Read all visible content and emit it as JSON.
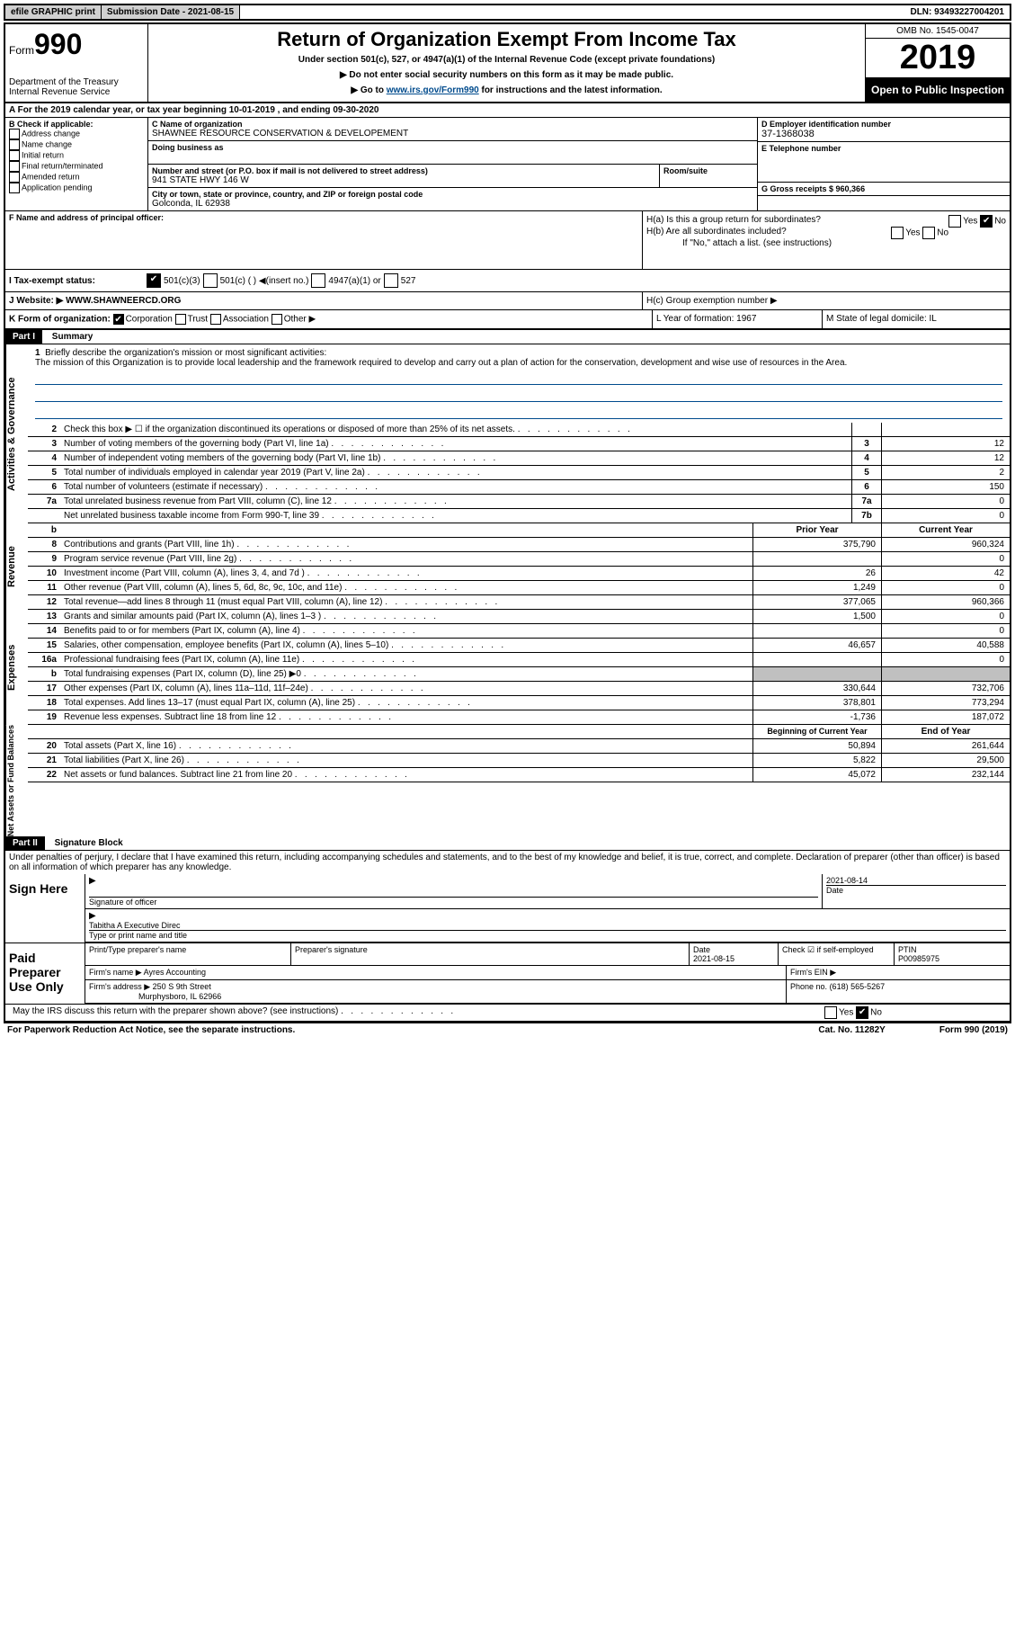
{
  "topbar": {
    "efile": "efile GRAPHIC print",
    "sub_label": "Submission Date - 2021-08-15",
    "dln": "DLN: 93493227004201"
  },
  "header": {
    "form_word": "Form",
    "form_num": "990",
    "dept": "Department of the Treasury\nInternal Revenue Service",
    "title": "Return of Organization Exempt From Income Tax",
    "sub": "Under section 501(c), 527, or 4947(a)(1) of the Internal Revenue Code (except private foundations)",
    "inst1": "▶ Do not enter social security numbers on this form as it may be made public.",
    "inst2_pre": "▶ Go to ",
    "inst2_link": "www.irs.gov/Form990",
    "inst2_post": " for instructions and the latest information.",
    "omb": "OMB No. 1545-0047",
    "year": "2019",
    "open": "Open to Public Inspection"
  },
  "row_a": "A For the 2019 calendar year, or tax year beginning 10-01-2019    , and ending 09-30-2020",
  "b": {
    "label": "B Check if applicable:",
    "addr": "Address change",
    "name": "Name change",
    "init": "Initial return",
    "final": "Final return/terminated",
    "amend": "Amended return",
    "app": "Application pending"
  },
  "c": {
    "name_lbl": "C Name of organization",
    "name": "SHAWNEE RESOURCE CONSERVATION & DEVELOPEMENT",
    "dba_lbl": "Doing business as",
    "addr_lbl": "Number and street (or P.O. box if mail is not delivered to street address)",
    "addr": "941 STATE HWY 146 W",
    "room_lbl": "Room/suite",
    "city_lbl": "City or town, state or province, country, and ZIP or foreign postal code",
    "city": "Golconda, IL  62938",
    "f_lbl": "F  Name and address of principal officer:"
  },
  "d": {
    "ein_lbl": "D Employer identification number",
    "ein": "37-1368038",
    "phone_lbl": "E Telephone number",
    "gross_lbl": "G Gross receipts $ 960,366"
  },
  "h": {
    "a": "H(a)  Is this a group return for subordinates?",
    "b": "H(b)  Are all subordinates included?",
    "b_note": "If \"No,\" attach a list. (see instructions)",
    "c": "H(c)  Group exemption number ▶",
    "yes": "Yes",
    "no": "No"
  },
  "i": {
    "label": "I    Tax-exempt status:",
    "o1": "501(c)(3)",
    "o2": "501(c) (   ) ◀(insert no.)",
    "o3": "4947(a)(1) or",
    "o4": "527"
  },
  "j": {
    "label": "J    Website: ▶",
    "val": "WWW.SHAWNEERCD.ORG"
  },
  "k": {
    "label": "K Form of organization:",
    "corp": "Corporation",
    "trust": "Trust",
    "assoc": "Association",
    "other": "Other ▶",
    "l_label": "L Year of formation: 1967",
    "m_label": "M State of legal domicile: IL"
  },
  "part1": {
    "hdr": "Part I",
    "title": "Summary"
  },
  "mission": {
    "n": "1",
    "lbl": "Briefly describe the organization's mission or most significant activities:",
    "txt": "The mission of this Organization is to provide local leadership and the framework required to develop and carry out a plan of action for the conservation, development and wise use of resources in the Area."
  },
  "lines_gov": [
    {
      "n": "2",
      "d": "Check this box ▶ ☐  if the organization discontinued its operations or disposed of more than 25% of its net assets.",
      "box": "",
      "v": ""
    },
    {
      "n": "3",
      "d": "Number of voting members of the governing body (Part VI, line 1a)",
      "box": "3",
      "v": "12"
    },
    {
      "n": "4",
      "d": "Number of independent voting members of the governing body (Part VI, line 1b)",
      "box": "4",
      "v": "12"
    },
    {
      "n": "5",
      "d": "Total number of individuals employed in calendar year 2019 (Part V, line 2a)",
      "box": "5",
      "v": "2"
    },
    {
      "n": "6",
      "d": "Total number of volunteers (estimate if necessary)",
      "box": "6",
      "v": "150"
    },
    {
      "n": "7a",
      "d": "Total unrelated business revenue from Part VIII, column (C), line 12",
      "box": "7a",
      "v": "0"
    },
    {
      "n": "",
      "d": "Net unrelated business taxable income from Form 990-T, line 39",
      "box": "7b",
      "v": "0"
    }
  ],
  "col_hdr": {
    "b": "b",
    "py": "Prior Year",
    "cy": "Current Year"
  },
  "lines_rev": [
    {
      "n": "8",
      "d": "Contributions and grants (Part VIII, line 1h)",
      "py": "375,790",
      "cy": "960,324"
    },
    {
      "n": "9",
      "d": "Program service revenue (Part VIII, line 2g)",
      "py": "",
      "cy": "0"
    },
    {
      "n": "10",
      "d": "Investment income (Part VIII, column (A), lines 3, 4, and 7d )",
      "py": "26",
      "cy": "42"
    },
    {
      "n": "11",
      "d": "Other revenue (Part VIII, column (A), lines 5, 6d, 8c, 9c, 10c, and 11e)",
      "py": "1,249",
      "cy": "0"
    },
    {
      "n": "12",
      "d": "Total revenue—add lines 8 through 11 (must equal Part VIII, column (A), line 12)",
      "py": "377,065",
      "cy": "960,366"
    }
  ],
  "lines_exp": [
    {
      "n": "13",
      "d": "Grants and similar amounts paid (Part IX, column (A), lines 1–3 )",
      "py": "1,500",
      "cy": "0"
    },
    {
      "n": "14",
      "d": "Benefits paid to or for members (Part IX, column (A), line 4)",
      "py": "",
      "cy": "0"
    },
    {
      "n": "15",
      "d": "Salaries, other compensation, employee benefits (Part IX, column (A), lines 5–10)",
      "py": "46,657",
      "cy": "40,588"
    },
    {
      "n": "16a",
      "d": "Professional fundraising fees (Part IX, column (A), line 11e)",
      "py": "",
      "cy": "0"
    },
    {
      "n": "b",
      "d": "Total fundraising expenses (Part IX, column (D), line 25) ▶0",
      "py": "grey",
      "cy": "grey"
    },
    {
      "n": "17",
      "d": "Other expenses (Part IX, column (A), lines 11a–11d, 11f–24e)",
      "py": "330,644",
      "cy": "732,706"
    },
    {
      "n": "18",
      "d": "Total expenses. Add lines 13–17 (must equal Part IX, column (A), line 25)",
      "py": "378,801",
      "cy": "773,294"
    },
    {
      "n": "19",
      "d": "Revenue less expenses. Subtract line 18 from line 12",
      "py": "-1,736",
      "cy": "187,072"
    }
  ],
  "col_hdr2": {
    "py": "Beginning of Current Year",
    "cy": "End of Year"
  },
  "lines_net": [
    {
      "n": "20",
      "d": "Total assets (Part X, line 16)",
      "py": "50,894",
      "cy": "261,644"
    },
    {
      "n": "21",
      "d": "Total liabilities (Part X, line 26)",
      "py": "5,822",
      "cy": "29,500"
    },
    {
      "n": "22",
      "d": "Net assets or fund balances. Subtract line 21 from line 20",
      "py": "45,072",
      "cy": "232,144"
    }
  ],
  "part2": {
    "hdr": "Part II",
    "title": "Signature Block"
  },
  "sig": {
    "pen": "Under penalties of perjury, I declare that I have examined this return, including accompanying schedules and statements, and to the best of my knowledge and belief, it is true, correct, and complete. Declaration of preparer (other than officer) is based on all information of which preparer has any knowledge.",
    "sign_here": "Sign Here",
    "sig_off": "Signature of officer",
    "date1": "2021-08-14",
    "date_lbl": "Date",
    "name": "Tabitha A  Executive Direc",
    "name_lbl": "Type or print name and title",
    "paid": "Paid Preparer Use Only",
    "prep_name_lbl": "Print/Type preparer's name",
    "prep_sig_lbl": "Preparer's signature",
    "date2": "2021-08-15",
    "self": "Check ☑ if self-employed",
    "ptin_lbl": "PTIN",
    "ptin": "P00985975",
    "firm_name_lbl": "Firm's name    ▶",
    "firm_name": "Ayres Accounting",
    "firm_ein_lbl": "Firm's EIN ▶",
    "firm_addr_lbl": "Firm's address ▶",
    "firm_addr": "250 S 9th Street",
    "firm_city": "Murphysboro, IL  62966",
    "firm_phone_lbl": "Phone no.",
    "firm_phone": "(618) 565-5267",
    "discuss": "May the IRS discuss this return with the preparer shown above? (see instructions)"
  },
  "footer": {
    "l": "For Paperwork Reduction Act Notice, see the separate instructions.",
    "m": "Cat. No. 11282Y",
    "r": "Form 990 (2019)"
  },
  "sidelabels": {
    "gov": "Activities & Governance",
    "rev": "Revenue",
    "exp": "Expenses",
    "net": "Net Assets or Fund Balances"
  }
}
